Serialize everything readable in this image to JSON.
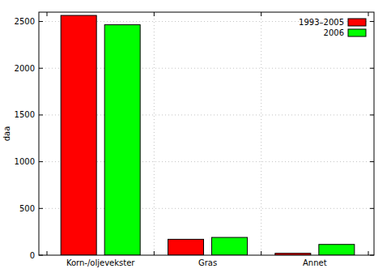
{
  "chart_data": {
    "type": "bar",
    "y_label": "daa",
    "categories": [
      "Korn-/oljevekster",
      "Gras",
      "Annet"
    ],
    "series": [
      {
        "name": "1993–2005",
        "color": "#ff0000",
        "values": [
          2565,
          170,
          20
        ]
      },
      {
        "name": "2006",
        "color": "#00ff00",
        "values": [
          2465,
          190,
          115
        ]
      }
    ],
    "ylim": [
      0,
      2600
    ],
    "yticks": [
      0,
      500,
      1000,
      1500,
      2000,
      2500
    ],
    "grid": true,
    "legend": "top-right"
  }
}
